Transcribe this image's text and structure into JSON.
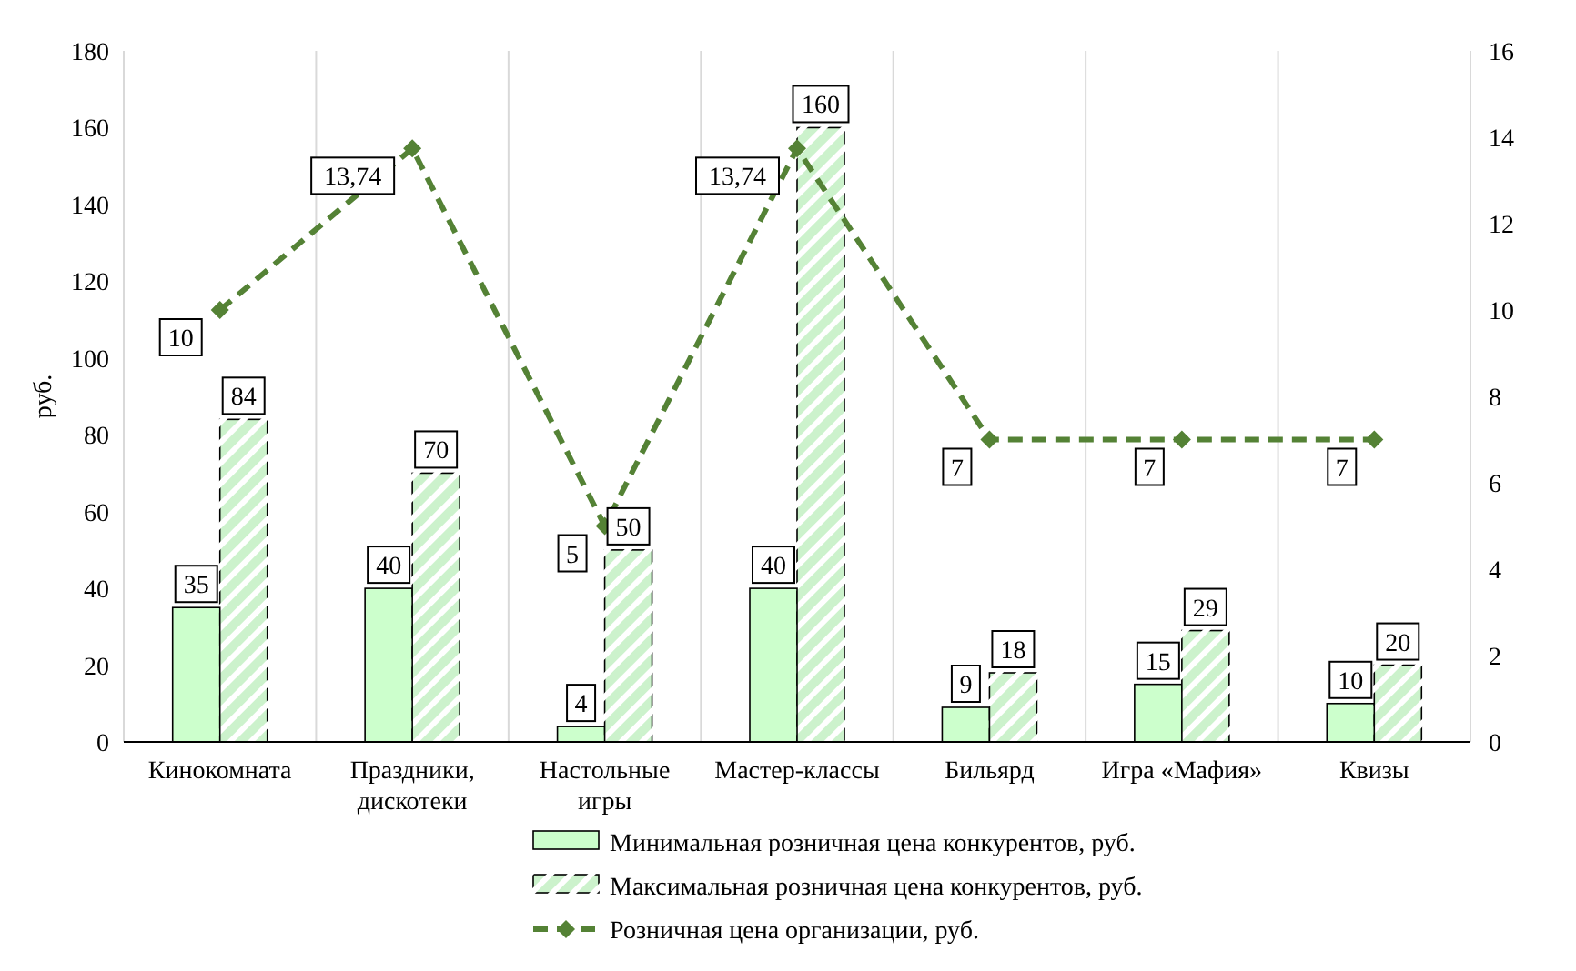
{
  "chart_data": {
    "type": "bar",
    "ylabel": "руб.",
    "categories": [
      "Кинокомната",
      "Праздники, дискотеки",
      "Настольные игры",
      "Мастер-классы",
      "Бильярд",
      "Игра «Мафия»",
      "Квизы"
    ],
    "series": [
      {
        "name": "Минимальная розничная цена конкурентов, руб.",
        "color": "#ccffcc",
        "values": [
          35,
          40,
          4,
          40,
          9,
          15,
          10
        ]
      },
      {
        "name": "Максимальная розничная цена конкурентов, руб.",
        "color": "#ccf2cc",
        "values": [
          84,
          70,
          50,
          160,
          18,
          29,
          20
        ]
      },
      {
        "name": "Розничная цена организации, руб.",
        "type": "line",
        "axis": "y2",
        "color": "#548235",
        "line_style": "dashed",
        "marker": "diamond",
        "values": [
          10,
          13.74,
          5,
          13.74,
          7,
          7,
          7
        ],
        "value_labels": [
          "10",
          "13,74",
          "5",
          "13,74",
          "7",
          "7",
          "7"
        ]
      }
    ],
    "ylim": [
      0,
      180
    ],
    "yticks": [
      0,
      20,
      40,
      60,
      80,
      100,
      120,
      140,
      160,
      180
    ],
    "y2lim": [
      0,
      16
    ],
    "y2ticks": [
      0,
      2,
      4,
      6,
      8,
      10,
      12,
      14,
      16
    ],
    "grid": "x",
    "legend": "bottom",
    "data_labels": true
  }
}
